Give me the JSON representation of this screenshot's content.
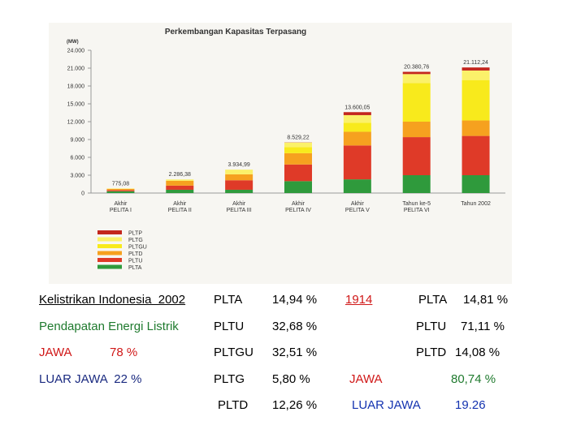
{
  "chart_data": {
    "type": "stacked_bar",
    "title": "Perkembangan Kapasitas Terpasang",
    "y_label": "(MW)",
    "categories": [
      [
        "Akhir",
        "PELITA I"
      ],
      [
        "Akhir",
        "PELITA II"
      ],
      [
        "Akhir",
        "PELITA III"
      ],
      [
        "Akhir",
        "PELITA IV"
      ],
      [
        "Akhir",
        "PELITA V"
      ],
      [
        "Tahun ke-5",
        "PELITA VI"
      ],
      [
        "Tahun 2002"
      ]
    ],
    "series": [
      {
        "name": "PLTA",
        "color": "#2f9a3c",
        "values": [
          300,
          550,
          550,
          2000,
          2300,
          3000,
          3000
        ]
      },
      {
        "name": "PLTU",
        "color": "#df3a28",
        "values": [
          200,
          700,
          1600,
          2800,
          5700,
          6400,
          6600
        ]
      },
      {
        "name": "PLTD",
        "color": "#f6a11f",
        "values": [
          200,
          800,
          1000,
          1900,
          2300,
          2600,
          2600
        ]
      },
      {
        "name": "PLTGU",
        "color": "#f8ea1c",
        "values": [
          0,
          0,
          0,
          1000,
          1500,
          6500,
          6800
        ]
      },
      {
        "name": "PLTG",
        "color": "#fbf16a",
        "values": [
          75,
          236,
          785,
          800,
          1300,
          1500,
          1600
        ]
      },
      {
        "name": "PLTP",
        "color": "#c3261d",
        "values": [
          0,
          0,
          0,
          29,
          500,
          381,
          512
        ]
      }
    ],
    "totals": [
      775.08,
      2286.38,
      3934.99,
      8529.22,
      13600.05,
      20380.76,
      21112.24
    ],
    "total_labels": [
      "775,08",
      "2.286,38",
      "3.934,99",
      "8.529,22",
      "13.600,05",
      "20.380,76",
      "21.112,24"
    ],
    "ylim": [
      0,
      24000
    ],
    "yticks": [
      0,
      {
        "value": 3000,
        "label": "3.000"
      },
      {
        "value": 6000,
        "label": "6.000"
      },
      {
        "value": 9000,
        "label": "9.000"
      },
      {
        "value": 12000,
        "label": "12.000"
      },
      {
        "value": 15000,
        "label": "15.000"
      },
      {
        "value": 18000,
        "label": "18.000"
      },
      {
        "value": 21000,
        "label": "21.000"
      },
      {
        "value": 24000,
        "label": "24.000"
      }
    ],
    "legend_order": [
      "PLTP",
      "PLTG",
      "PLTGU",
      "PLTD",
      "PLTU",
      "PLTA"
    ]
  },
  "notes": {
    "heading": "Kelistrikan Indonesia  2002",
    "income_heading": "Pendapatan Energi Listrik",
    "jawa": "JAWA",
    "jawa_pct": "78 %",
    "luar_jawa": "LUAR JAWA  22 %",
    "plant_2002": [
      [
        "PLTA",
        "14,94 %"
      ],
      [
        "PLTU",
        "32,68 %"
      ],
      [
        "PLTGU",
        "32,51 %"
      ],
      [
        "PLTG",
        "5,80 %"
      ],
      [
        "PLTD",
        "12,26 %"
      ]
    ],
    "year": "1914",
    "plant_1914": [
      [
        "PLTA",
        "14,81 %"
      ],
      [
        "PLTU",
        "71,11 %"
      ],
      [
        "PLTD",
        "14,08 %"
      ]
    ],
    "jawa_1914": [
      "JAWA",
      "80,74 %"
    ],
    "luar_1914": [
      "LUAR JAWA",
      "19.26"
    ]
  }
}
